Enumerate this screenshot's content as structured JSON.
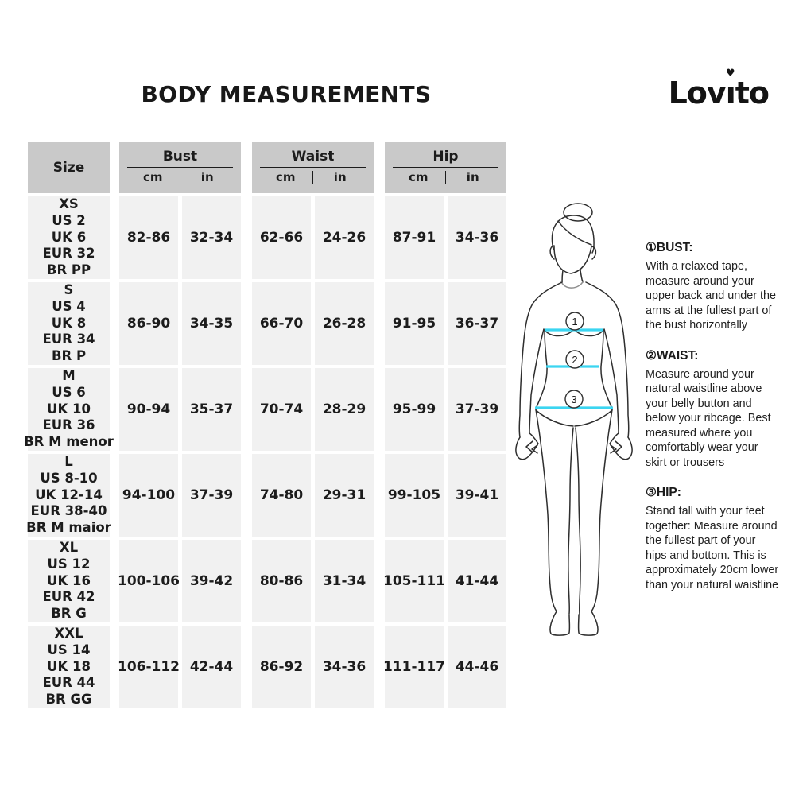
{
  "title": "BODY MEASUREMENTS",
  "brand_logo": "Lovito",
  "icons": {
    "heart": "♥"
  },
  "colors": {
    "header_bg": "#c9c9c9",
    "cell_bg": "#f1f1f1",
    "accent_cyan": "#3bd5f1",
    "text": "#1c1c1c"
  },
  "table": {
    "size_header": "Size",
    "groups": [
      {
        "label": "Bust",
        "units": [
          "cm",
          "in"
        ]
      },
      {
        "label": "Waist",
        "units": [
          "cm",
          "in"
        ]
      },
      {
        "label": "Hip",
        "units": [
          "cm",
          "in"
        ]
      }
    ],
    "rows": [
      {
        "size_lines": [
          "XS",
          "US 2",
          "UK 6",
          "EUR 32",
          "BR PP"
        ],
        "bust": {
          "cm": "82-86",
          "in": "32-34"
        },
        "waist": {
          "cm": "62-66",
          "in": "24-26"
        },
        "hip": {
          "cm": "87-91",
          "in": "34-36"
        }
      },
      {
        "size_lines": [
          "S",
          "US 4",
          "UK 8",
          "EUR 34",
          "BR P"
        ],
        "bust": {
          "cm": "86-90",
          "in": "34-35"
        },
        "waist": {
          "cm": "66-70",
          "in": "26-28"
        },
        "hip": {
          "cm": "91-95",
          "in": "36-37"
        }
      },
      {
        "size_lines": [
          "M",
          "US 6",
          "UK 10",
          "EUR 36",
          "BR M menor"
        ],
        "bust": {
          "cm": "90-94",
          "in": "35-37"
        },
        "waist": {
          "cm": "70-74",
          "in": "28-29"
        },
        "hip": {
          "cm": "95-99",
          "in": "37-39"
        }
      },
      {
        "size_lines": [
          "L",
          "US 8-10",
          "UK 12-14",
          "EUR 38-40",
          "BR M maior"
        ],
        "bust": {
          "cm": "94-100",
          "in": "37-39"
        },
        "waist": {
          "cm": "74-80",
          "in": "29-31"
        },
        "hip": {
          "cm": "99-105",
          "in": "39-41"
        }
      },
      {
        "size_lines": [
          "XL",
          "US 12",
          "UK 16",
          "EUR 42",
          "BR G"
        ],
        "bust": {
          "cm": "100-106",
          "in": "39-42"
        },
        "waist": {
          "cm": "80-86",
          "in": "31-34"
        },
        "hip": {
          "cm": "105-111",
          "in": "41-44"
        }
      },
      {
        "size_lines": [
          "XXL",
          "US 14",
          "UK 18",
          "EUR 44",
          "BR GG"
        ],
        "bust": {
          "cm": "106-112",
          "in": "42-44"
        },
        "waist": {
          "cm": "86-92",
          "in": "34-36"
        },
        "hip": {
          "cm": "111-117",
          "in": "44-46"
        }
      }
    ]
  },
  "figure": {
    "markers": [
      "1",
      "2",
      "3"
    ]
  },
  "instructions": [
    {
      "number": "①",
      "label": "BUST:",
      "text": "With a relaxed tape, measure around your upper back and under the arms at the fullest part of the bust horizontally"
    },
    {
      "number": "②",
      "label": "WAIST:",
      "text": "Measure around your natural waistline above your belly button and below your ribcage. Best measured where you comfortably wear your skirt or trousers"
    },
    {
      "number": "③",
      "label": "HIP:",
      "text": "Stand tall with your feet together: Measure around the fullest part of your hips and bottom. This is approximately 20cm lower than your natural waistline"
    }
  ]
}
